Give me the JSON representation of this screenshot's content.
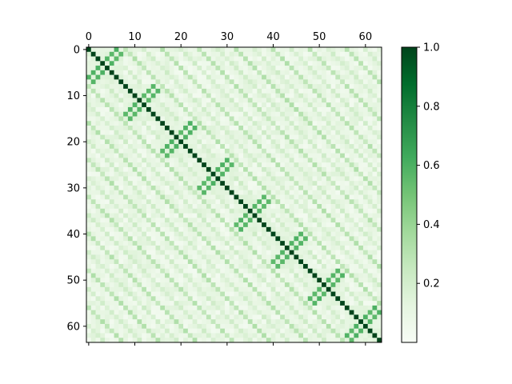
{
  "chart_data": {
    "type": "heatmap",
    "title": "",
    "xlabel": "",
    "ylabel": "",
    "rows": 64,
    "cols": 64,
    "x_ticks": [
      0,
      10,
      20,
      30,
      40,
      50,
      60
    ],
    "y_ticks": [
      0,
      10,
      20,
      30,
      40,
      50,
      60
    ],
    "x_axis_position": "top",
    "colormap": "Greens",
    "vmin": 0.0,
    "vmax": 1.0,
    "colorbar_ticks": [
      "0.2",
      "0.4",
      "0.6",
      "0.8",
      "1.0"
    ],
    "colorbar_tick_values": [
      0.2,
      0.4,
      0.6,
      0.8,
      1.0
    ],
    "grid": false,
    "structure": {
      "diagonal_value": 1.0,
      "block_size": 8,
      "block_pattern_value": 0.55,
      "off_diagonal_stripe_value": 0.25,
      "background_value": 0.08
    }
  }
}
